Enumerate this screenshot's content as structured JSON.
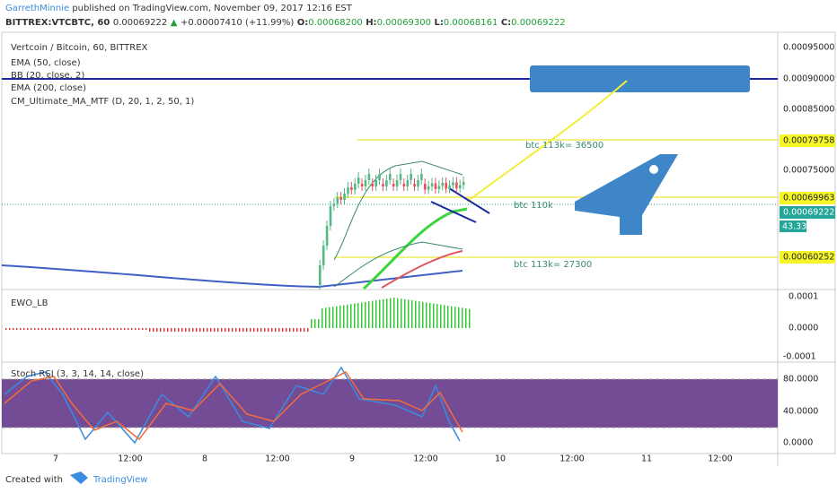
{
  "header": {
    "author": "GarrethMinnie",
    "published": "published on TradingView.com, November 09, 2017 12:16 EST",
    "symbol": "BITTREX:VTCBTC, 60",
    "last": "0.00069222",
    "arrow": "▲",
    "change": "+0.00007410 (+11.99%)",
    "ohlc": [
      {
        "key": "O:",
        "value": "0.00068200"
      },
      {
        "key": "H:",
        "value": "0.00069300"
      },
      {
        "key": "L:",
        "value": "0.00068161"
      },
      {
        "key": "C:",
        "value": "0.00069222"
      }
    ]
  },
  "main_pane": {
    "legend": [
      "Vertcoin / Bitcoin, 60, BITTREX",
      "EMA (50, close)",
      "BB (20, close, 2)",
      "EMA (200, close)",
      "CM_Ultimate_MA_MTF (D, 20, 1, 2, 50, 1)"
    ],
    "annotations": [
      "btc 113k= 36500",
      "btc 110k",
      "btc 113k= 27300"
    ],
    "price_axis": [
      "0.00095000",
      "0.00090000",
      "0.00085000",
      "0.00079758",
      "0.00075000",
      "0.00069963",
      "0.00069222",
      "43.33",
      "0.00060252"
    ]
  },
  "ewo_pane": {
    "label": "EWO_LB",
    "axis": [
      "0.0001",
      "0.0000",
      "-0.0001"
    ]
  },
  "stoch_pane": {
    "label": "Stoch RSI (3, 3, 14, 14, close)",
    "axis": [
      "80.0000",
      "40.0000",
      "0.0000"
    ]
  },
  "time_axis": [
    "7",
    "12:00",
    "8",
    "12:00",
    "9",
    "12:00",
    "10",
    "12:00",
    "11",
    "12:00"
  ],
  "footer": {
    "created": "Created with",
    "brand": "TradingView"
  }
}
